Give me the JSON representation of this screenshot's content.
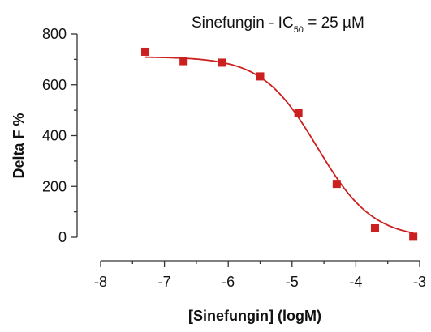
{
  "chart_data": {
    "type": "scatter",
    "title": {
      "prefix": "Sinefungin - IC",
      "subscript": "50",
      "suffix": " = 25 µM"
    },
    "xlabel": "[Sinefungin] (logM)",
    "ylabel": "Delta F %",
    "xlim": [
      -8,
      -3
    ],
    "ylim": [
      0,
      800
    ],
    "x_ticks": [
      -8,
      -7,
      -6,
      -5,
      -4,
      -3
    ],
    "y_ticks": [
      0,
      200,
      400,
      600,
      800
    ],
    "grid": false,
    "series": [
      {
        "points": [
          {
            "x": -7.3,
            "y": 730
          },
          {
            "x": -6.7,
            "y": 693
          },
          {
            "x": -6.1,
            "y": 687
          },
          {
            "x": -5.5,
            "y": 633
          },
          {
            "x": -4.9,
            "y": 490
          },
          {
            "x": -4.3,
            "y": 210
          },
          {
            "x": -3.7,
            "y": 35
          },
          {
            "x": -3.1,
            "y": 2
          }
        ]
      }
    ],
    "fit_curve": {
      "model": "four-parameter logistic",
      "top": 710,
      "bottom": -5,
      "log_ic50": -4.6,
      "hill_slope": -1.0,
      "x_range": [
        -7.3,
        -3.1
      ]
    },
    "colors": {
      "marker": "#cc1f1f",
      "curve": "#cc1f1f",
      "axis": "#333333"
    }
  }
}
